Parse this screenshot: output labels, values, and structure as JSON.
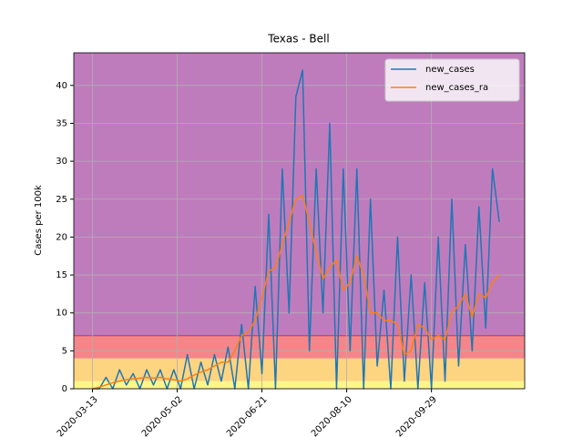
{
  "chart_data": {
    "type": "line",
    "title": "Texas - Bell",
    "y_label": "Cases per 100k",
    "x": [
      "2020-03-13",
      "2020-03-17",
      "2020-03-21",
      "2020-03-25",
      "2020-03-29",
      "2020-04-02",
      "2020-04-06",
      "2020-04-10",
      "2020-04-14",
      "2020-04-18",
      "2020-04-22",
      "2020-04-26",
      "2020-04-30",
      "2020-05-04",
      "2020-05-08",
      "2020-05-12",
      "2020-05-16",
      "2020-05-20",
      "2020-05-24",
      "2020-05-28",
      "2020-06-01",
      "2020-06-05",
      "2020-06-09",
      "2020-06-13",
      "2020-06-17",
      "2020-06-21",
      "2020-06-25",
      "2020-06-29",
      "2020-07-03",
      "2020-07-07",
      "2020-07-11",
      "2020-07-15",
      "2020-07-19",
      "2020-07-23",
      "2020-07-27",
      "2020-07-31",
      "2020-08-04",
      "2020-08-08",
      "2020-08-12",
      "2020-08-16",
      "2020-08-20",
      "2020-08-24",
      "2020-08-28",
      "2020-09-01",
      "2020-09-05",
      "2020-09-09",
      "2020-09-13",
      "2020-09-17",
      "2020-09-21",
      "2020-09-25",
      "2020-09-29",
      "2020-10-03",
      "2020-10-07",
      "2020-10-11",
      "2020-10-15",
      "2020-10-19",
      "2020-10-23",
      "2020-10-27",
      "2020-10-31",
      "2020-11-04",
      "2020-11-08"
    ],
    "series": [
      {
        "name": "new_cases",
        "color": "#1f77b4",
        "values": [
          0,
          0,
          1.5,
          0,
          2.5,
          0.5,
          2,
          0,
          2.5,
          0.5,
          2.5,
          0,
          2.5,
          0,
          4.5,
          0,
          3.5,
          0.5,
          4.5,
          1,
          5.5,
          0,
          8.5,
          0,
          13.5,
          2,
          23,
          0,
          29,
          10,
          38.5,
          42,
          5,
          29,
          10,
          35,
          0,
          29,
          5,
          29,
          0,
          25,
          3,
          13,
          0,
          20,
          1,
          15,
          0,
          14,
          0,
          20,
          1,
          25,
          3,
          19,
          5,
          24,
          8,
          29,
          22
        ]
      },
      {
        "name": "new_cases_ra",
        "color": "#ff7f0e",
        "values": [
          0,
          0.2,
          0.5,
          0.8,
          1,
          1.2,
          1.3,
          1.4,
          1.5,
          1.4,
          1.5,
          1.3,
          1.2,
          1,
          1.3,
          1.8,
          2.2,
          2.5,
          3,
          3.5,
          3.5,
          5,
          7,
          7.5,
          9,
          12,
          15.5,
          16,
          19,
          22,
          25,
          25.5,
          22,
          18,
          14.5,
          16,
          17,
          13,
          14,
          17.5,
          15,
          10,
          10,
          9,
          9,
          8.5,
          4.5,
          5,
          8.5,
          8,
          6.5,
          7,
          6.5,
          10,
          11,
          12.5,
          9.5,
          12.5,
          12,
          14,
          15
        ]
      }
    ],
    "xlim": [
      "2020-03-02",
      "2020-11-23"
    ],
    "xticks": [
      "2020-03-13",
      "2020-05-02",
      "2020-06-21",
      "2020-08-10",
      "2020-09-29"
    ],
    "ylim": [
      0,
      44.3
    ],
    "yticks": [
      0,
      5,
      10,
      15,
      20,
      25,
      30,
      35,
      40
    ],
    "grid": true,
    "legend": "upper right",
    "bands": [
      {
        "from": 0,
        "to": 1,
        "color": "#fff68a"
      },
      {
        "from": 1,
        "to": 4,
        "color": "#fdd480"
      },
      {
        "from": 4,
        "to": 7,
        "color": "#f4868a"
      },
      {
        "from": 7,
        "to": 44.3,
        "color": "#bf7cbd"
      }
    ],
    "band_line": {
      "value": 7,
      "color": "#e0303a"
    }
  }
}
